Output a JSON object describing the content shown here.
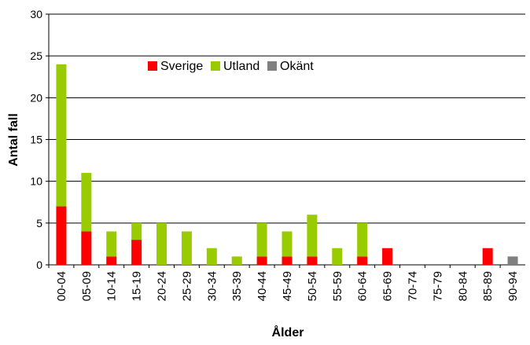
{
  "chart_data": {
    "type": "stacked_bar",
    "categories": [
      "00-04",
      "05-09",
      "10-14",
      "15-19",
      "20-24",
      "25-29",
      "30-34",
      "35-39",
      "40-44",
      "45-49",
      "50-54",
      "55-59",
      "60-64",
      "65-69",
      "70-74",
      "75-79",
      "80-84",
      "85-89",
      "90-94"
    ],
    "series": [
      {
        "name": "Sverige",
        "color": "#ff0000",
        "values": [
          7,
          4,
          1,
          3,
          0,
          0,
          0,
          0,
          1,
          1,
          1,
          0,
          1,
          2,
          0,
          0,
          0,
          2,
          0
        ]
      },
      {
        "name": "Utland",
        "color": "#99cc00",
        "values": [
          17,
          7,
          3,
          2,
          5,
          4,
          2,
          1,
          4,
          3,
          5,
          2,
          4,
          0,
          0,
          0,
          0,
          0,
          0
        ]
      },
      {
        "name": "Okänt",
        "color": "#808080",
        "values": [
          0,
          0,
          0,
          0,
          0,
          0,
          0,
          0,
          0,
          0,
          0,
          0,
          0,
          0,
          0,
          0,
          0,
          0,
          1
        ]
      }
    ],
    "xlabel": "Ålder",
    "ylabel": "Antal fall",
    "ylim": [
      0,
      30
    ],
    "yticks": [
      0,
      5,
      10,
      15,
      20,
      25,
      30
    ],
    "grid": true,
    "legend": "top"
  }
}
